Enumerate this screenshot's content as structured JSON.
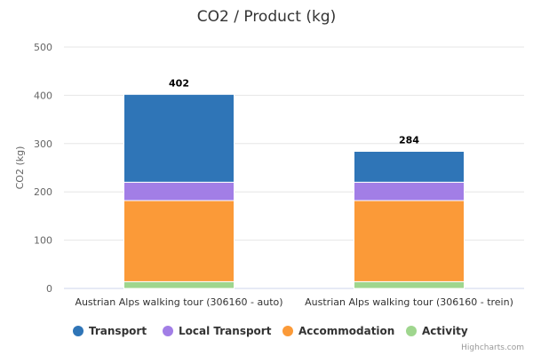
{
  "chart_data": {
    "type": "bar",
    "stacked": true,
    "title": "CO2 / Product (kg)",
    "ylabel": "CO2 (kg)",
    "ylim": [
      0,
      500
    ],
    "yticks": [
      0,
      100,
      200,
      300,
      400,
      500
    ],
    "grid": true,
    "legend_position": "bottom",
    "categories": [
      "Austrian Alps walking tour (306160 - auto)",
      "Austrian Alps walking tour (306160 - trein)"
    ],
    "totals": [
      402,
      284
    ],
    "series": [
      {
        "name": "Activity",
        "color": "#9fd68e",
        "values": [
          14,
          14
        ]
      },
      {
        "name": "Accommodation",
        "color": "#fb9a38",
        "values": [
          168,
          168
        ]
      },
      {
        "name": "Local Transport",
        "color": "#a27ee6",
        "values": [
          38,
          38
        ]
      },
      {
        "name": "Transport",
        "color": "#2f75b7",
        "values": [
          182,
          64
        ]
      }
    ],
    "legend_order": [
      "Transport",
      "Local Transport",
      "Accommodation",
      "Activity"
    ]
  },
  "credits": "Highcharts.com"
}
